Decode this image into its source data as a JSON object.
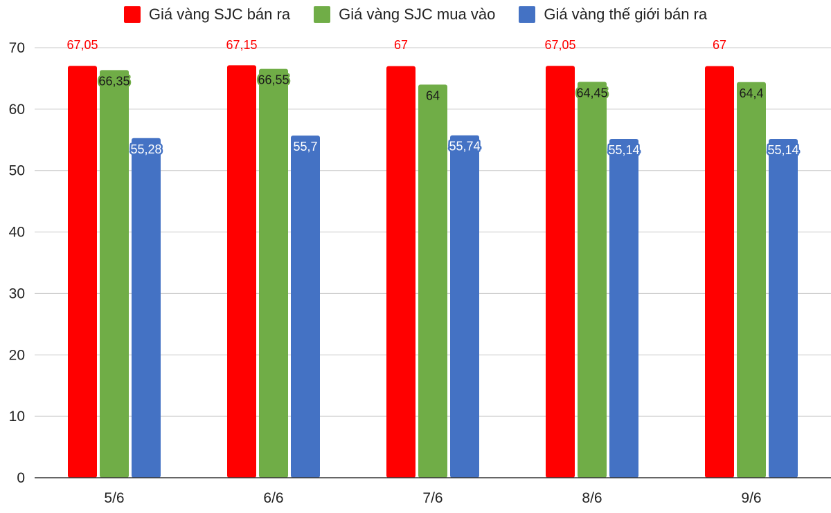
{
  "chart_data": {
    "type": "bar",
    "categories": [
      "5/6",
      "6/6",
      "7/6",
      "8/6",
      "9/6"
    ],
    "series": [
      {
        "name": "Giá vàng SJC bán ra",
        "color": "#ff0000",
        "values": [
          67.05,
          67.15,
          67,
          67.05,
          67
        ],
        "labels": [
          "67,05",
          "67,15",
          "67",
          "67,05",
          "67"
        ],
        "label_color": "#ff0000"
      },
      {
        "name": "Giá vàng SJC mua vào",
        "color": "#70ad47",
        "values": [
          66.35,
          66.55,
          64,
          64.45,
          64.4
        ],
        "labels": [
          "66,35",
          "66,55",
          "64",
          "64,45",
          "64,4"
        ],
        "label_color": "#1a1a1a"
      },
      {
        "name": "Giá vàng thế giới bán ra",
        "color": "#4472c4",
        "values": [
          55.28,
          55.7,
          55.74,
          55.14,
          55.14
        ],
        "labels": [
          "55,28",
          "55,7",
          "55,74",
          "55,14",
          "55,14"
        ],
        "label_color": "#ffffff"
      }
    ],
    "yticks": [
      "0",
      "10",
      "20",
      "30",
      "40",
      "50",
      "60",
      "70"
    ],
    "ylim": [
      0,
      70
    ],
    "grid": true,
    "legend_position": "top"
  }
}
